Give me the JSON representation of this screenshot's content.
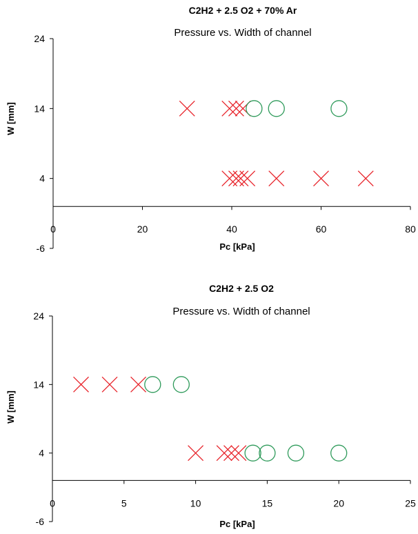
{
  "chart_data": [
    {
      "type": "scatter",
      "title": "C2H2 + 2.5 O2 + 70% Ar",
      "subtitle": "Pressure vs. Width of channel",
      "xlabel": "Pc [kPa]",
      "ylabel": "W [mm]",
      "xlim": [
        0,
        80
      ],
      "ylim": [
        -6,
        24
      ],
      "xticks": [
        "0",
        "20",
        "40",
        "60",
        "80"
      ],
      "yticks": [
        "24",
        "14",
        "4",
        "-6"
      ],
      "xtick_values": [
        0,
        20,
        40,
        60,
        80
      ],
      "ytick_values": [
        24,
        14,
        4,
        -6
      ],
      "grid": false,
      "series": [
        {
          "marker": "x",
          "color": "#e8232a",
          "points": [
            {
              "x": 30,
              "y": 14
            },
            {
              "x": 39.5,
              "y": 14
            },
            {
              "x": 41,
              "y": 14
            },
            {
              "x": 42.5,
              "y": 14
            },
            {
              "x": 39.5,
              "y": 4
            },
            {
              "x": 41,
              "y": 4
            },
            {
              "x": 42,
              "y": 4
            },
            {
              "x": 43.5,
              "y": 4
            },
            {
              "x": 50,
              "y": 4
            },
            {
              "x": 60,
              "y": 4
            },
            {
              "x": 70,
              "y": 4
            }
          ]
        },
        {
          "marker": "circle",
          "color": "#2e9a5a",
          "points": [
            {
              "x": 45,
              "y": 14
            },
            {
              "x": 50,
              "y": 14
            },
            {
              "x": 64,
              "y": 14
            }
          ]
        }
      ]
    },
    {
      "type": "scatter",
      "title": "C2H2 + 2.5 O2",
      "subtitle": "Pressure vs. Width of channel",
      "xlabel": "Pc [kPa]",
      "ylabel": "W [mm]",
      "xlim": [
        0,
        25
      ],
      "ylim": [
        -6,
        24
      ],
      "xticks": [
        "0",
        "5",
        "10",
        "15",
        "20",
        "25"
      ],
      "yticks": [
        "24",
        "14",
        "4",
        "-6"
      ],
      "xtick_values": [
        0,
        5,
        10,
        15,
        20,
        25
      ],
      "ytick_values": [
        24,
        14,
        4,
        -6
      ],
      "grid": false,
      "series": [
        {
          "marker": "x",
          "color": "#e8232a",
          "points": [
            {
              "x": 2,
              "y": 14
            },
            {
              "x": 4,
              "y": 14
            },
            {
              "x": 6,
              "y": 14
            },
            {
              "x": 10,
              "y": 4
            },
            {
              "x": 12,
              "y": 4
            },
            {
              "x": 12.5,
              "y": 4
            },
            {
              "x": 13,
              "y": 4
            }
          ]
        },
        {
          "marker": "circle",
          "color": "#2e9a5a",
          "points": [
            {
              "x": 7,
              "y": 14
            },
            {
              "x": 9,
              "y": 14
            },
            {
              "x": 14,
              "y": 4
            },
            {
              "x": 15,
              "y": 4
            },
            {
              "x": 17,
              "y": 4
            },
            {
              "x": 20,
              "y": 4
            }
          ]
        }
      ]
    }
  ]
}
